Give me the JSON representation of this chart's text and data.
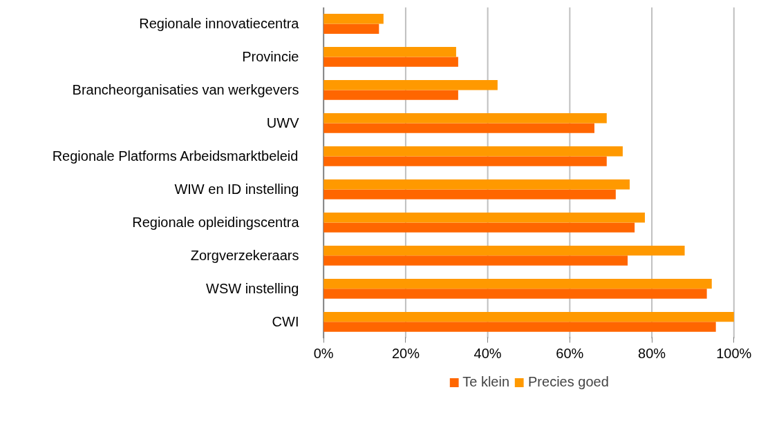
{
  "chart_data": {
    "type": "bar",
    "orientation": "horizontal",
    "categories": [
      "Regionale innovatiecentra",
      "Provincie",
      "Brancheorganisaties van werkgevers",
      "UWV",
      "Regionale Platforms Arbeidsmarktbeleid",
      "WIW en ID instelling",
      "Regionale opleidingscentra",
      "Zorgverzekeraars",
      "WSW instelling",
      "CWI"
    ],
    "series": [
      {
        "name": "Te klein",
        "color": "#ff6600",
        "values": [
          0.135,
          0.328,
          0.328,
          0.66,
          0.69,
          0.712,
          0.758,
          0.741,
          0.934,
          0.956
        ]
      },
      {
        "name": "Precies goed",
        "color": "#ff9900",
        "values": [
          0.146,
          0.323,
          0.424,
          0.69,
          0.729,
          0.746,
          0.783,
          0.88,
          0.946,
          1.0
        ]
      }
    ],
    "xlim": [
      0,
      1
    ],
    "xticks": [
      {
        "value": 0,
        "label": "0%"
      },
      {
        "value": 0.2,
        "label": "20%"
      },
      {
        "value": 0.4,
        "label": "40%"
      },
      {
        "value": 0.6,
        "label": "60%"
      },
      {
        "value": 0.8,
        "label": "80%"
      },
      {
        "value": 1,
        "label": "100%"
      }
    ],
    "grid": "x",
    "legend": "bottom"
  }
}
